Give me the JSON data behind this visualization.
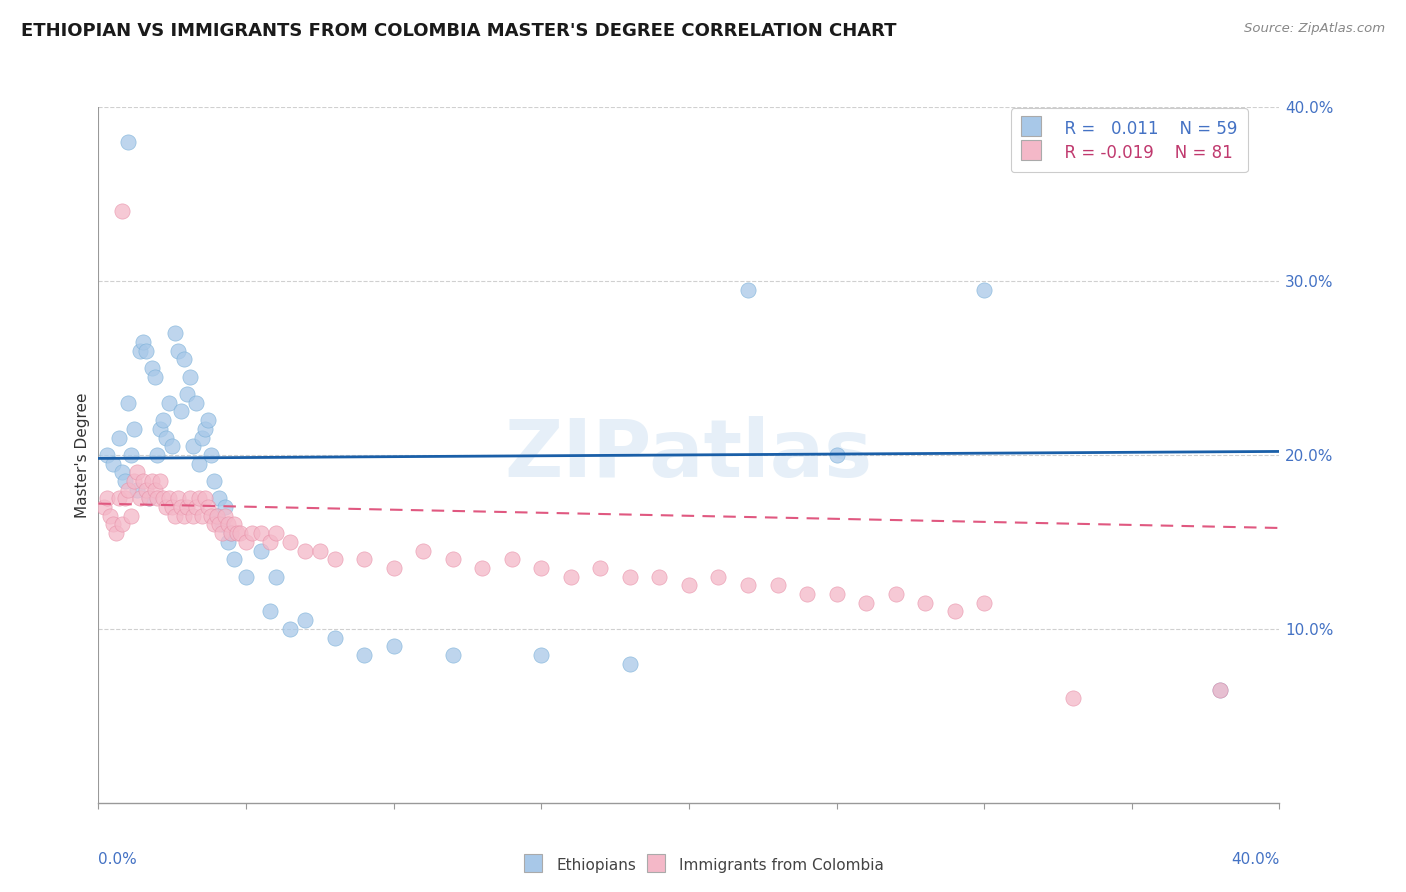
{
  "title": "ETHIOPIAN VS IMMIGRANTS FROM COLOMBIA MASTER'S DEGREE CORRELATION CHART",
  "source": "Source: ZipAtlas.com",
  "ylabel": "Master's Degree",
  "xlim": [
    0.0,
    0.4
  ],
  "ylim": [
    0.0,
    0.4
  ],
  "blue_color": "#a8c8e8",
  "pink_color": "#f4b8c8",
  "blue_line_color": "#1a5fa8",
  "pink_line_color": "#e05880",
  "watermark": "ZIPatlas",
  "blue_points_x": [
    0.003,
    0.005,
    0.007,
    0.008,
    0.009,
    0.01,
    0.011,
    0.012,
    0.013,
    0.014,
    0.015,
    0.016,
    0.017,
    0.018,
    0.019,
    0.02,
    0.021,
    0.022,
    0.023,
    0.024,
    0.025,
    0.026,
    0.027,
    0.028,
    0.029,
    0.03,
    0.031,
    0.032,
    0.033,
    0.034,
    0.035,
    0.036,
    0.037,
    0.038,
    0.039,
    0.04,
    0.041,
    0.042,
    0.043,
    0.044,
    0.045,
    0.046,
    0.05,
    0.055,
    0.058,
    0.06,
    0.065,
    0.07,
    0.08,
    0.09,
    0.1,
    0.12,
    0.15,
    0.18,
    0.22,
    0.25,
    0.3,
    0.38,
    0.01
  ],
  "blue_points_y": [
    0.2,
    0.195,
    0.21,
    0.19,
    0.185,
    0.23,
    0.2,
    0.215,
    0.18,
    0.26,
    0.265,
    0.26,
    0.175,
    0.25,
    0.245,
    0.2,
    0.215,
    0.22,
    0.21,
    0.23,
    0.205,
    0.27,
    0.26,
    0.225,
    0.255,
    0.235,
    0.245,
    0.205,
    0.23,
    0.195,
    0.21,
    0.215,
    0.22,
    0.2,
    0.185,
    0.165,
    0.175,
    0.16,
    0.17,
    0.15,
    0.155,
    0.14,
    0.13,
    0.145,
    0.11,
    0.13,
    0.1,
    0.105,
    0.095,
    0.085,
    0.09,
    0.085,
    0.085,
    0.08,
    0.295,
    0.2,
    0.295,
    0.065,
    0.38
  ],
  "pink_points_x": [
    0.002,
    0.003,
    0.004,
    0.005,
    0.006,
    0.007,
    0.008,
    0.009,
    0.01,
    0.011,
    0.012,
    0.013,
    0.014,
    0.015,
    0.016,
    0.017,
    0.018,
    0.019,
    0.02,
    0.021,
    0.022,
    0.023,
    0.024,
    0.025,
    0.026,
    0.027,
    0.028,
    0.029,
    0.03,
    0.031,
    0.032,
    0.033,
    0.034,
    0.035,
    0.036,
    0.037,
    0.038,
    0.039,
    0.04,
    0.041,
    0.042,
    0.043,
    0.044,
    0.045,
    0.046,
    0.047,
    0.048,
    0.05,
    0.052,
    0.055,
    0.058,
    0.06,
    0.065,
    0.07,
    0.075,
    0.08,
    0.09,
    0.1,
    0.11,
    0.12,
    0.13,
    0.14,
    0.15,
    0.16,
    0.17,
    0.18,
    0.19,
    0.2,
    0.21,
    0.22,
    0.23,
    0.24,
    0.25,
    0.26,
    0.27,
    0.28,
    0.29,
    0.3,
    0.33,
    0.38,
    0.008
  ],
  "pink_points_y": [
    0.17,
    0.175,
    0.165,
    0.16,
    0.155,
    0.175,
    0.16,
    0.175,
    0.18,
    0.165,
    0.185,
    0.19,
    0.175,
    0.185,
    0.18,
    0.175,
    0.185,
    0.18,
    0.175,
    0.185,
    0.175,
    0.17,
    0.175,
    0.17,
    0.165,
    0.175,
    0.17,
    0.165,
    0.17,
    0.175,
    0.165,
    0.17,
    0.175,
    0.165,
    0.175,
    0.17,
    0.165,
    0.16,
    0.165,
    0.16,
    0.155,
    0.165,
    0.16,
    0.155,
    0.16,
    0.155,
    0.155,
    0.15,
    0.155,
    0.155,
    0.15,
    0.155,
    0.15,
    0.145,
    0.145,
    0.14,
    0.14,
    0.135,
    0.145,
    0.14,
    0.135,
    0.14,
    0.135,
    0.13,
    0.135,
    0.13,
    0.13,
    0.125,
    0.13,
    0.125,
    0.125,
    0.12,
    0.12,
    0.115,
    0.12,
    0.115,
    0.11,
    0.115,
    0.06,
    0.065,
    0.34
  ],
  "blue_trend_x": [
    0.0,
    0.4
  ],
  "blue_trend_y": [
    0.198,
    0.202
  ],
  "pink_trend_x": [
    0.0,
    0.4
  ],
  "pink_trend_y": [
    0.172,
    0.158
  ]
}
